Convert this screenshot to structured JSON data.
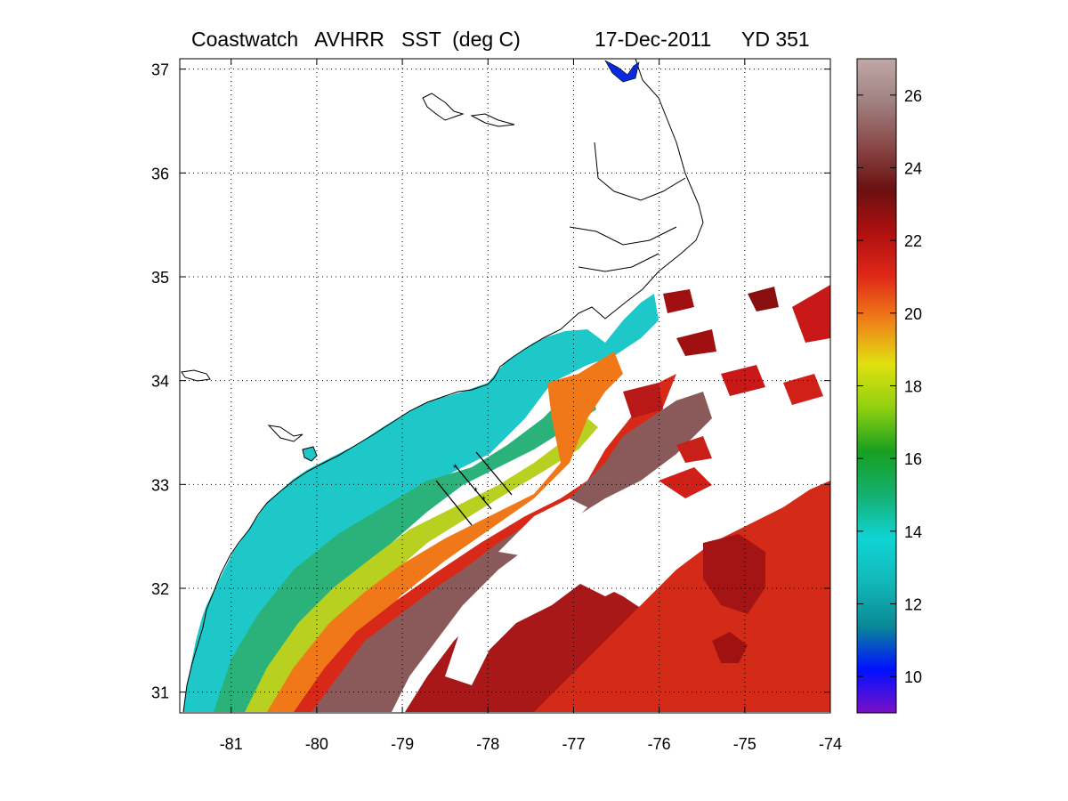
{
  "title": {
    "left": "Coastwatch   AVHRR   SST  (deg C)",
    "date": "17-Dec-2011",
    "yearday": "YD 351"
  },
  "map": {
    "lon_range": [
      -81.6,
      -74
    ],
    "lat_range": [
      30.8,
      37.1
    ],
    "lon_ticks": [
      -81,
      -80,
      -79,
      -78,
      -77,
      -76,
      -75,
      -74
    ],
    "lat_ticks": [
      31,
      32,
      33,
      34,
      35,
      36,
      37
    ],
    "lon_tick_labels": [
      "-81",
      "-80",
      "-79",
      "-78",
      "-77",
      "-76",
      "-75",
      "-74"
    ],
    "lat_tick_labels": [
      "31",
      "32",
      "33",
      "34",
      "35",
      "36",
      "37"
    ],
    "grid": "dotted"
  },
  "colorbar": {
    "range": [
      9,
      27
    ],
    "ticks": [
      10,
      12,
      14,
      16,
      18,
      20,
      22,
      24,
      26
    ],
    "tick_labels": [
      "10",
      "12",
      "14",
      "16",
      "18",
      "20",
      "22",
      "24",
      "26"
    ],
    "colors": [
      "#7a10c8",
      "#0010ff",
      "#0a8a96",
      "#12b8b8",
      "#10d4d4",
      "#14b070",
      "#18a020",
      "#90d010",
      "#e0e010",
      "#f08018",
      "#e02818",
      "#b01010",
      "#6a1010",
      "#8a4848",
      "#a08080",
      "#c0a8a8"
    ]
  },
  "sst_bands": [
    {
      "name": "band-14",
      "temp": 14.5,
      "color": "#1ec8c8"
    },
    {
      "name": "band-17",
      "temp": 17,
      "color": "#28b060"
    },
    {
      "name": "band-20",
      "temp": 20,
      "color": "#c8d818"
    },
    {
      "name": "band-22",
      "temp": 22,
      "color": "#f07818"
    },
    {
      "name": "band-23",
      "temp": 23,
      "color": "#d82818"
    },
    {
      "name": "band-25",
      "temp": 25.5,
      "color": "#8a5a5a"
    },
    {
      "name": "band-24-offshore",
      "temp": 23.5,
      "color": "#a01010"
    }
  ],
  "clouds_color": "#ffffff",
  "coast_color": "#000000"
}
